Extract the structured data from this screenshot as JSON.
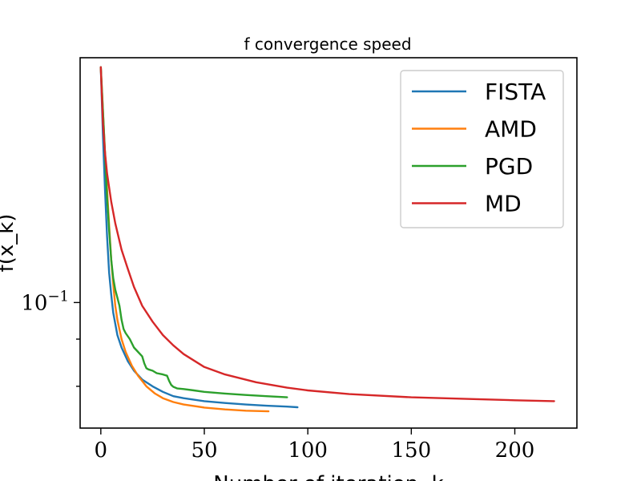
{
  "chart_data": {
    "type": "line",
    "title": "f convergence speed",
    "xlabel": "Number of iteration, k",
    "ylabel": "f(x_k)",
    "xlim": [
      -10,
      230
    ],
    "ylim": [
      0.0465,
      0.445
    ],
    "yscale": "log",
    "grid": false,
    "legend_position": "top-right",
    "x_ticks": [
      {
        "value": 0,
        "label": "0"
      },
      {
        "value": 50,
        "label": "50"
      },
      {
        "value": 100,
        "label": "100"
      },
      {
        "value": 150,
        "label": "150"
      },
      {
        "value": 200,
        "label": "200"
      }
    ],
    "y_major_ticks": [
      {
        "value": 0.1,
        "label": "10",
        "exponent": "−1"
      }
    ],
    "y_minor_ticks": [
      0.06,
      0.08
    ],
    "series": [
      {
        "name": "FISTA",
        "color": "#1f77b4",
        "x": [
          0,
          1,
          2,
          3,
          4,
          5,
          6,
          8,
          10,
          13,
          16,
          20,
          25,
          30,
          35,
          40,
          50,
          60,
          70,
          80,
          90,
          95
        ],
        "y": [
          0.42,
          0.28,
          0.2,
          0.15,
          0.12,
          0.105,
          0.094,
          0.082,
          0.076,
          0.07,
          0.066,
          0.0625,
          0.06,
          0.058,
          0.0565,
          0.0558,
          0.0548,
          0.0542,
          0.0537,
          0.0533,
          0.053,
          0.0528
        ]
      },
      {
        "name": "AMD",
        "color": "#ff7f0e",
        "x": [
          0,
          2,
          4,
          5,
          6,
          7,
          8,
          10,
          12,
          15,
          18,
          22,
          26,
          30,
          35,
          40,
          50,
          60,
          70,
          81
        ],
        "y": [
          0.42,
          0.25,
          0.16,
          0.13,
          0.112,
          0.098,
          0.09,
          0.08,
          0.074,
          0.068,
          0.064,
          0.06,
          0.0575,
          0.0558,
          0.0545,
          0.0537,
          0.0527,
          0.0521,
          0.0517,
          0.0515
        ]
      },
      {
        "name": "PGD",
        "color": "#2ca02c",
        "x": [
          0,
          2,
          3,
          4,
          5,
          6,
          7,
          8,
          9,
          10,
          11,
          12,
          14,
          16,
          18,
          20,
          21,
          22,
          23,
          25,
          27,
          30,
          32,
          33,
          34,
          35,
          37,
          40,
          45,
          50,
          60,
          70,
          80,
          90
        ],
        "y": [
          0.42,
          0.25,
          0.19,
          0.155,
          0.13,
          0.116,
          0.108,
          0.103,
          0.098,
          0.09,
          0.085,
          0.083,
          0.08,
          0.076,
          0.074,
          0.072,
          0.069,
          0.067,
          0.0665,
          0.066,
          0.065,
          0.0645,
          0.064,
          0.062,
          0.0605,
          0.0598,
          0.0592,
          0.059,
          0.0585,
          0.058,
          0.0574,
          0.0569,
          0.0565,
          0.0561
        ]
      },
      {
        "name": "MD",
        "color": "#d62728",
        "x": [
          0,
          1,
          2,
          3,
          5,
          7,
          10,
          13,
          16,
          20,
          25,
          30,
          35,
          40,
          50,
          60,
          75,
          90,
          100,
          120,
          150,
          180,
          200,
          219
        ],
        "y": [
          0.42,
          0.3,
          0.25,
          0.22,
          0.185,
          0.162,
          0.138,
          0.123,
          0.11,
          0.098,
          0.089,
          0.082,
          0.077,
          0.073,
          0.0675,
          0.0645,
          0.0615,
          0.0595,
          0.0585,
          0.0572,
          0.0561,
          0.0555,
          0.0551,
          0.0548
        ]
      }
    ]
  }
}
